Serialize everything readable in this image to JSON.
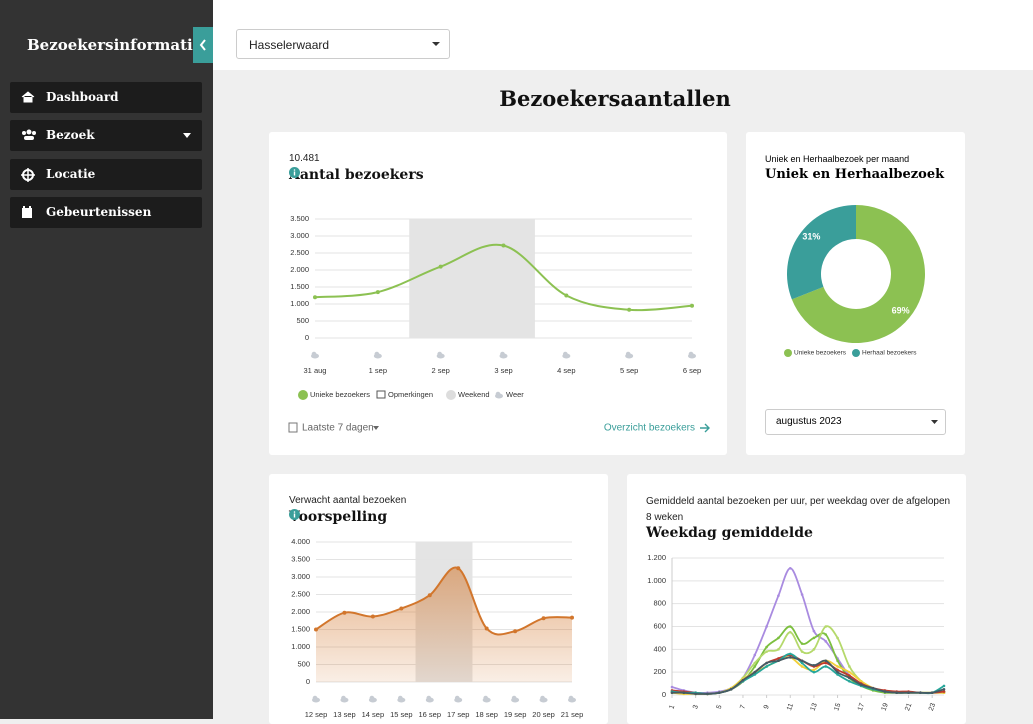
{
  "sidebar": {
    "title": "Bezoekersinformatie",
    "menu": [
      "Dashboard",
      "Bezoek",
      "Locatie",
      "Gebeurtenissen"
    ]
  },
  "header": {
    "location": "Hasselerwaard"
  },
  "page_title": "Bezoekersaantallen",
  "chart_data": [
    {
      "type": "line",
      "subtitle": "10.481",
      "title": "Aantal bezoekers",
      "categories": [
        "31 aug",
        "1 sep",
        "2 sep",
        "3 sep",
        "4 sep",
        "5 sep",
        "6 sep"
      ],
      "values": [
        1200,
        1350,
        2100,
        2720,
        1250,
        830,
        950
      ],
      "color": "#8cc152",
      "ylim": [
        0,
        3500
      ],
      "yticks": [
        0,
        500,
        {
          "value": 1000,
          "label": "1.000"
        },
        {
          "value": 1500,
          "label": "1.500"
        },
        {
          "value": 2000,
          "label": "2.000"
        },
        {
          "value": 2500,
          "label": "2.500"
        },
        {
          "value": 3000,
          "label": "3.000"
        },
        {
          "value": 3500,
          "label": "3.500"
        }
      ],
      "grid": true,
      "weekend": [
        "2 sep",
        "3 sep"
      ],
      "legend": [
        "Unieke bezoekers",
        "Opmerkingen",
        "Weekend",
        "Weer"
      ],
      "period": "Laatste 7 dagen",
      "link": "Overzicht bezoekers"
    },
    {
      "type": "donut",
      "subtitle": "Uniek en Herhaalbezoek per maand",
      "title": "Uniek en Herhaalbezoek",
      "categories": [
        "Unieke bezoekers",
        "Herhaal bezoekers"
      ],
      "values": [
        69,
        31
      ],
      "value_labels": [
        "69%",
        "31%"
      ],
      "colors": [
        "#8cc152",
        "#3a9e9a"
      ],
      "selector": "augustus 2023"
    },
    {
      "type": "area",
      "subtitle": "Verwacht aantal bezoeken",
      "title": "Voorspelling",
      "categories": [
        "12 sep",
        "13 sep",
        "14 sep",
        "15 sep",
        "16 sep",
        "17 sep",
        "18 sep",
        "19 sep",
        "20 sep",
        "21 sep"
      ],
      "values": [
        1500,
        1980,
        1870,
        2100,
        2480,
        3250,
        1530,
        1450,
        1820,
        1840
      ],
      "color": "#d2762c",
      "ylim": [
        0,
        4000
      ],
      "yticks": [
        0,
        500,
        {
          "value": 1000,
          "label": "1.000"
        },
        {
          "value": 1500,
          "label": "1.500"
        },
        {
          "value": 2000,
          "label": "2.000"
        },
        {
          "value": 2500,
          "label": "2.500"
        },
        {
          "value": 3000,
          "label": "3.000"
        },
        {
          "value": 3500,
          "label": "3.500"
        },
        {
          "value": 4000,
          "label": "4.000"
        }
      ],
      "grid": true,
      "weekend": [
        "16 sep",
        "17 sep"
      ]
    },
    {
      "type": "multiline",
      "subtitle": "Gemiddeld aantal bezoeken per uur, per weekdag over de afgelopen 8 weken",
      "title": "Weekdag gemiddelde",
      "x": [
        1,
        2,
        3,
        4,
        5,
        6,
        7,
        8,
        9,
        10,
        11,
        12,
        13,
        14,
        15,
        16,
        17,
        18,
        19,
        20,
        21,
        22,
        23,
        24
      ],
      "xlim": [
        1,
        24
      ],
      "xticks": [
        1,
        3,
        5,
        7,
        9,
        11,
        13,
        15,
        17,
        19,
        21,
        23
      ],
      "ylim": [
        0,
        1200
      ],
      "yticks": [
        0,
        200,
        400,
        600,
        800,
        {
          "value": 1000,
          "label": "1.000"
        },
        {
          "value": 1200,
          "label": "1.200"
        }
      ],
      "grid": true,
      "series": [
        {
          "color": "#a98be0",
          "values": [
            70,
            40,
            20,
            20,
            30,
            60,
            150,
            350,
            600,
            870,
            1110,
            880,
            560,
            470,
            320,
            170,
            90,
            50,
            30,
            20,
            20,
            20,
            20,
            20
          ]
        },
        {
          "color": "#7cbf3f",
          "values": [
            30,
            20,
            10,
            10,
            20,
            50,
            120,
            250,
            420,
            500,
            600,
            450,
            500,
            530,
            300,
            150,
            80,
            40,
            20,
            20,
            20,
            20,
            20,
            30
          ]
        },
        {
          "color": "#b5d96b",
          "values": [
            20,
            20,
            10,
            10,
            20,
            60,
            150,
            280,
            380,
            400,
            550,
            380,
            400,
            600,
            500,
            250,
            120,
            60,
            30,
            20,
            20,
            20,
            20,
            20
          ]
        },
        {
          "color": "#f2d13a",
          "values": [
            20,
            10,
            10,
            10,
            20,
            60,
            140,
            200,
            250,
            300,
            330,
            250,
            220,
            300,
            250,
            200,
            120,
            60,
            30,
            20,
            20,
            20,
            20,
            20
          ]
        },
        {
          "color": "#c0392b",
          "values": [
            40,
            30,
            20,
            10,
            20,
            50,
            120,
            200,
            280,
            320,
            350,
            300,
            250,
            280,
            220,
            170,
            100,
            60,
            40,
            30,
            30,
            20,
            20,
            30
          ]
        },
        {
          "color": "#26a69a",
          "values": [
            30,
            20,
            20,
            10,
            20,
            50,
            120,
            180,
            250,
            300,
            360,
            280,
            200,
            250,
            180,
            120,
            80,
            50,
            30,
            20,
            20,
            20,
            20,
            80
          ]
        },
        {
          "color": "#455a64",
          "values": [
            20,
            20,
            10,
            10,
            20,
            50,
            130,
            200,
            280,
            300,
            330,
            300,
            260,
            300,
            200,
            150,
            90,
            60,
            30,
            20,
            20,
            20,
            20,
            50
          ]
        }
      ]
    }
  ]
}
